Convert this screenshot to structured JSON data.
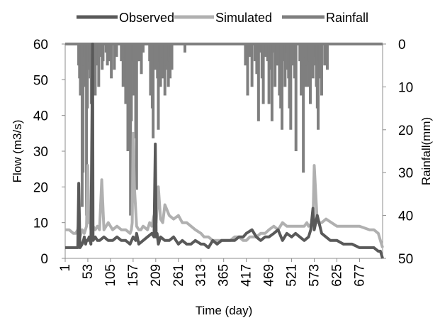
{
  "chart_data": {
    "type": "line",
    "xlabel": "Time (day)",
    "ylabel": "Flow (m3/s)",
    "y2label": "Rainfall(mm)",
    "xlim": [
      1,
      730
    ],
    "ylim": [
      0,
      60
    ],
    "y2lim": [
      0,
      50
    ],
    "y2_inverted": true,
    "x_ticks": [
      "1",
      "53",
      "105",
      "157",
      "209",
      "261",
      "313",
      "365",
      "417",
      "469",
      "521",
      "573",
      "625",
      "677"
    ],
    "y_ticks": [
      "0",
      "10",
      "20",
      "30",
      "40",
      "50",
      "60"
    ],
    "y2_ticks": [
      "0",
      "10",
      "20",
      "30",
      "40",
      "50"
    ],
    "grid": false,
    "legend_position": "top",
    "series": [
      {
        "name": "Observed",
        "axis": "left",
        "color": "#595959",
        "x": [
          1,
          20,
          30,
          32,
          35,
          40,
          43,
          45,
          48,
          50,
          53,
          56,
          60,
          64,
          65,
          70,
          75,
          80,
          90,
          100,
          105,
          110,
          120,
          130,
          140,
          150,
          157,
          163,
          165,
          170,
          180,
          190,
          200,
          205,
          208,
          210,
          212,
          215,
          220,
          230,
          240,
          250,
          261,
          270,
          280,
          290,
          300,
          313,
          320,
          330,
          340,
          350,
          360,
          365,
          380,
          390,
          400,
          410,
          417,
          430,
          440,
          450,
          460,
          469,
          480,
          490,
          500,
          510,
          521,
          530,
          540,
          550,
          560,
          565,
          570,
          573,
          580,
          590,
          600,
          610,
          625,
          640,
          650,
          660,
          677,
          690,
          700,
          710,
          720,
          725,
          730
        ],
        "values": [
          3,
          3,
          3,
          21,
          3,
          4,
          5,
          6,
          4,
          5,
          5,
          6,
          4,
          60,
          5,
          6,
          5,
          5,
          6,
          5,
          5,
          5,
          6,
          5,
          5,
          4,
          6,
          5,
          7,
          4,
          5,
          6,
          7,
          6,
          32,
          6,
          7,
          4,
          6,
          5,
          5,
          6,
          4,
          5,
          4,
          4,
          5,
          4,
          4,
          3,
          5,
          4,
          5,
          5,
          5,
          5,
          6,
          6,
          7,
          8,
          6,
          5,
          6,
          6,
          7,
          8,
          5,
          7,
          6,
          7,
          6,
          5,
          6,
          8,
          14,
          8,
          12,
          7,
          6,
          5,
          5,
          4,
          4,
          4,
          3,
          3,
          3,
          3,
          2,
          2,
          0
        ]
      },
      {
        "name": "Simulated",
        "axis": "left",
        "color": "#b0b0b0",
        "x": [
          1,
          10,
          20,
          25,
          30,
          32,
          35,
          40,
          45,
          50,
          53,
          55,
          57,
          60,
          65,
          70,
          75,
          80,
          85,
          90,
          100,
          105,
          110,
          120,
          130,
          140,
          150,
          153,
          155,
          157,
          160,
          165,
          170,
          175,
          180,
          190,
          195,
          200,
          205,
          210,
          215,
          220,
          225,
          230,
          240,
          250,
          261,
          270,
          280,
          290,
          300,
          313,
          320,
          330,
          340,
          350,
          365,
          380,
          390,
          400,
          410,
          417,
          425,
          430,
          440,
          450,
          460,
          469,
          480,
          490,
          500,
          510,
          521,
          530,
          540,
          550,
          556,
          560,
          570,
          573,
          580,
          590,
          600,
          625,
          650,
          677,
          700,
          710,
          720,
          725,
          730
        ],
        "values": [
          8,
          8,
          7,
          7,
          8,
          10,
          6,
          8,
          7,
          9,
          26,
          10,
          12,
          8,
          9,
          8,
          9,
          8,
          22,
          8,
          10,
          9,
          8,
          9,
          8,
          8,
          7,
          8,
          10,
          35,
          20,
          9,
          8,
          8,
          9,
          8,
          10,
          9,
          12,
          10,
          20,
          11,
          10,
          15,
          12,
          11,
          12,
          10,
          10,
          9,
          8,
          7,
          6,
          6,
          5,
          5,
          5,
          5,
          6,
          6,
          5,
          5,
          6,
          6,
          6,
          7,
          7,
          8,
          9,
          8,
          10,
          9,
          9,
          9,
          9,
          9,
          10,
          9,
          10,
          26,
          10,
          10,
          11,
          9,
          9,
          9,
          8,
          8,
          7,
          5,
          3
        ]
      },
      {
        "name": "Rainfall",
        "axis": "right",
        "color": "#7f7f7f",
        "x": [
          32,
          34,
          36,
          38,
          40,
          42,
          44,
          46,
          48,
          50,
          52,
          54,
          57,
          59,
          61,
          63,
          65,
          67,
          70,
          73,
          78,
          84,
          86,
          88,
          95,
          98,
          103,
          107,
          114,
          119,
          130,
          134,
          136,
          138,
          140,
          143,
          145,
          147,
          149,
          151,
          153,
          156,
          159,
          161,
          163,
          165,
          167,
          169,
          171,
          176,
          180,
          195,
          197,
          199,
          201,
          203,
          205,
          207,
          209,
          211,
          213,
          215,
          218,
          220,
          222,
          224,
          226,
          228,
          230,
          232,
          234,
          236,
          238,
          240,
          242,
          244,
          246,
          276,
          415,
          420,
          425,
          430,
          437,
          441,
          445,
          449,
          453,
          456,
          460,
          463,
          466,
          469,
          473,
          476,
          479,
          483,
          486,
          490,
          493,
          496,
          499,
          503,
          506,
          510,
          512,
          514,
          516,
          519,
          522,
          525,
          528,
          531,
          540,
          543,
          546,
          548,
          550,
          552,
          554,
          556,
          558,
          560,
          562,
          564,
          566,
          568,
          570,
          572,
          574,
          576,
          578,
          580,
          582,
          584,
          586,
          590,
          597,
          603
        ],
        "values": [
          5,
          8,
          12,
          8,
          38,
          30,
          5,
          3,
          10,
          40,
          15,
          6,
          4,
          8,
          14,
          2,
          5,
          8,
          12,
          5,
          10,
          3,
          6,
          4,
          2,
          5,
          4,
          8,
          6,
          3,
          4,
          10,
          6,
          3,
          14,
          8,
          25,
          5,
          10,
          40,
          18,
          4,
          12,
          6,
          22,
          34,
          4,
          2,
          4,
          7,
          2,
          4,
          12,
          6,
          15,
          22,
          6,
          6,
          2,
          4,
          8,
          20,
          4,
          10,
          6,
          3,
          8,
          4,
          12,
          6,
          5,
          3,
          10,
          4,
          8,
          3,
          6,
          2,
          5,
          12,
          3,
          10,
          4,
          7,
          18,
          2,
          8,
          14,
          3,
          2,
          4,
          14,
          6,
          18,
          2,
          10,
          5,
          5,
          12,
          15,
          20,
          4,
          10,
          2,
          6,
          8,
          15,
          20,
          5,
          3,
          8,
          25,
          4,
          12,
          5,
          30,
          6,
          3,
          10,
          5,
          2,
          10,
          4,
          14,
          6,
          2,
          8,
          5,
          2,
          3,
          10,
          15,
          20,
          4,
          8,
          12,
          5,
          6
        ]
      }
    ]
  }
}
